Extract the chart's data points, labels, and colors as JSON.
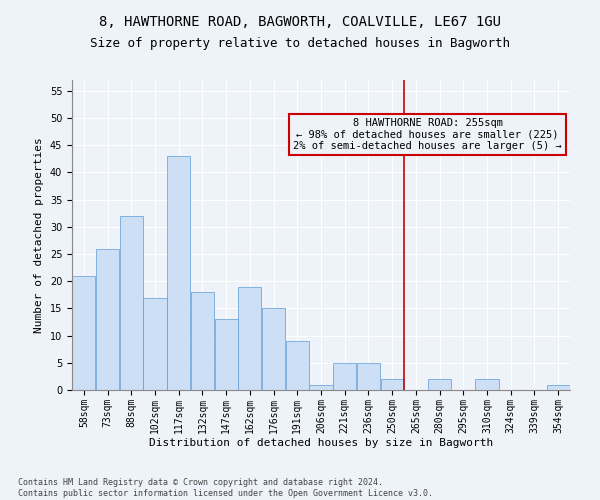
{
  "title1": "8, HAWTHORNE ROAD, BAGWORTH, COALVILLE, LE67 1GU",
  "title2": "Size of property relative to detached houses in Bagworth",
  "xlabel": "Distribution of detached houses by size in Bagworth",
  "ylabel": "Number of detached properties",
  "bar_labels": [
    "58sqm",
    "73sqm",
    "88sqm",
    "102sqm",
    "117sqm",
    "132sqm",
    "147sqm",
    "162sqm",
    "176sqm",
    "191sqm",
    "206sqm",
    "221sqm",
    "236sqm",
    "250sqm",
    "265sqm",
    "280sqm",
    "295sqm",
    "310sqm",
    "324sqm",
    "339sqm",
    "354sqm"
  ],
  "bar_values": [
    21,
    26,
    32,
    17,
    43,
    18,
    13,
    19,
    15,
    9,
    1,
    5,
    5,
    2,
    0,
    2,
    0,
    2,
    0,
    0,
    1
  ],
  "bar_color": "#ccdff5",
  "bar_edge_color": "#5b9bd5",
  "bar_width": 0.98,
  "vline_x_index": 13.5,
  "vline_color": "#cc0000",
  "annotation_text": "8 HAWTHORNE ROAD: 255sqm\n← 98% of detached houses are smaller (225)\n2% of semi-detached houses are larger (5) →",
  "annotation_box_color": "#cc0000",
  "ylim": [
    0,
    57
  ],
  "yticks": [
    0,
    5,
    10,
    15,
    20,
    25,
    30,
    35,
    40,
    45,
    50,
    55
  ],
  "background_color": "#eef2f9",
  "footer": "Contains HM Land Registry data © Crown copyright and database right 2024.\nContains public sector information licensed under the Open Government Licence v3.0.",
  "title_fontsize": 10,
  "subtitle_fontsize": 9,
  "xlabel_fontsize": 8,
  "ylabel_fontsize": 8,
  "tick_fontsize": 7,
  "annotation_fontsize": 7.5,
  "footer_fontsize": 6
}
